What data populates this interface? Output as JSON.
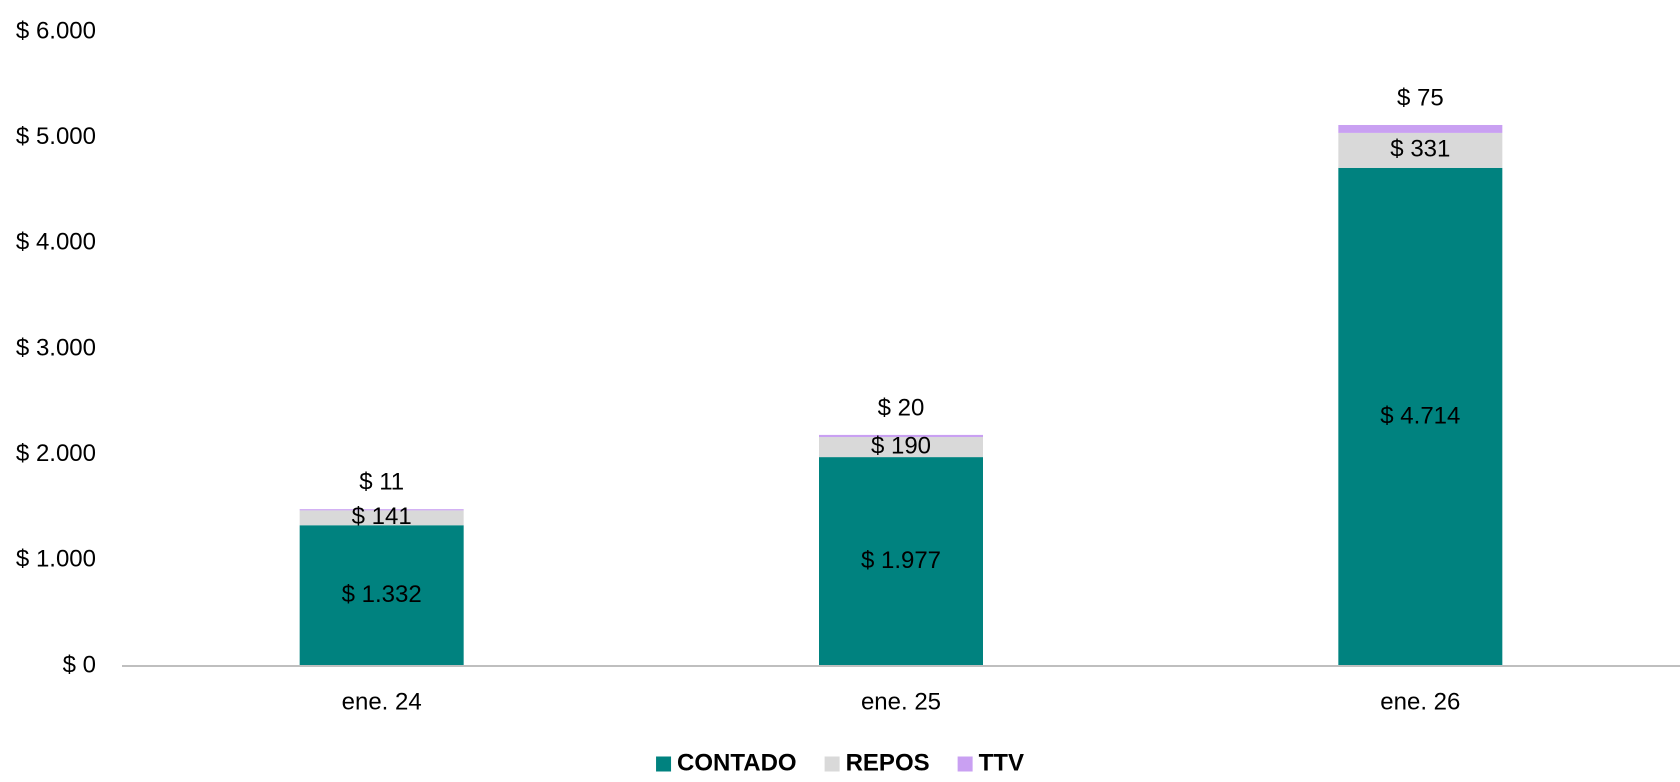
{
  "chart_data": {
    "type": "bar",
    "stacked": true,
    "title": "",
    "xlabel": "",
    "ylabel": "",
    "categories": [
      "ene. 24",
      "ene. 25",
      "ene. 26"
    ],
    "series": [
      {
        "name": "CONTADO",
        "values": [
          1332,
          1977,
          4714
        ],
        "labels": [
          "$ 1.332",
          "$ 1.977",
          "$ 4.714"
        ],
        "color": "#00827f"
      },
      {
        "name": "REPOS",
        "values": [
          141,
          190,
          331
        ],
        "labels": [
          "$ 141",
          "$ 190",
          "$ 331"
        ],
        "color": "#d9d9d9"
      },
      {
        "name": "TTV",
        "values": [
          11,
          20,
          75
        ],
        "labels": [
          "$ 11",
          "$ 20",
          "$ 75"
        ],
        "color": "#c9a0f2"
      }
    ],
    "ylim": [
      0,
      6000
    ],
    "yticks": [
      0,
      1000,
      2000,
      3000,
      4000,
      5000,
      6000
    ],
    "ytick_labels": [
      "$ 0",
      "$ 1.000",
      "$ 2.000",
      "$ 3.000",
      "$ 4.000",
      "$ 5.000",
      "$ 6.000"
    ],
    "grid": false,
    "legend_position": "bottom",
    "axis_color": "#bfbfbf"
  }
}
